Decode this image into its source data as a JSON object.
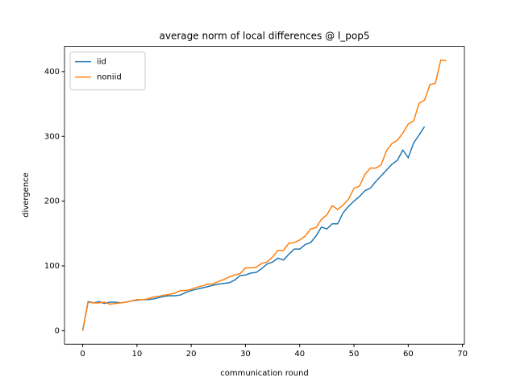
{
  "chart_data": {
    "type": "line",
    "title": "average norm of local differences @ l_pop5",
    "xlabel": "communication round",
    "ylabel": "divergence",
    "series": [
      {
        "name": "iid",
        "color": "#1f77b4",
        "x": [
          0,
          1,
          2,
          3,
          4,
          5,
          6,
          7,
          8,
          9,
          10,
          11,
          12,
          13,
          14,
          15,
          16,
          17,
          18,
          19,
          20,
          21,
          22,
          23,
          24,
          25,
          26,
          27,
          28,
          29,
          30,
          31,
          32,
          33,
          34,
          35,
          36,
          37,
          38,
          39,
          40,
          41,
          42,
          43,
          44,
          45,
          46,
          47,
          48,
          49,
          50,
          51,
          52,
          53,
          54,
          55,
          56,
          57,
          58,
          59,
          60,
          61,
          62,
          63
        ],
        "values": [
          0,
          45,
          43,
          45,
          42,
          44,
          44,
          43,
          44,
          46,
          47,
          48,
          48,
          49,
          51,
          53,
          54,
          54,
          55,
          59,
          62,
          64,
          66,
          68,
          70,
          72,
          73,
          74,
          78,
          85,
          86,
          89,
          90,
          96,
          103,
          106,
          112,
          109,
          118,
          126,
          126,
          133,
          136,
          146,
          160,
          157,
          165,
          165,
          182,
          192,
          200,
          207,
          216,
          220,
          230,
          239,
          248,
          257,
          263,
          279,
          267,
          290,
          302,
          315
        ]
      },
      {
        "name": "noniid",
        "color": "#ff7f0e",
        "x": [
          0,
          1,
          2,
          3,
          4,
          5,
          6,
          7,
          8,
          9,
          10,
          11,
          12,
          13,
          14,
          15,
          16,
          17,
          18,
          19,
          20,
          21,
          22,
          23,
          24,
          25,
          26,
          27,
          28,
          29,
          30,
          31,
          32,
          33,
          34,
          35,
          36,
          37,
          38,
          39,
          40,
          41,
          42,
          43,
          44,
          45,
          46,
          47,
          48,
          49,
          50,
          51,
          52,
          53,
          54,
          55,
          56,
          57,
          58,
          59,
          60,
          61,
          62,
          63,
          64,
          65,
          66,
          67
        ],
        "values": [
          0,
          44,
          43,
          43,
          44,
          41,
          42,
          43,
          44,
          46,
          48,
          48,
          49,
          52,
          53,
          55,
          56,
          58,
          62,
          62,
          64,
          67,
          69,
          72,
          72,
          76,
          79,
          83,
          86,
          88,
          97,
          97,
          98,
          104,
          106,
          114,
          124,
          124,
          135,
          136,
          140,
          146,
          157,
          159,
          172,
          179,
          193,
          187,
          194,
          203,
          220,
          223,
          241,
          251,
          251,
          256,
          278,
          289,
          294,
          305,
          319,
          324,
          351,
          356,
          380,
          382,
          418,
          417
        ]
      }
    ],
    "xlim": [
      -3.35,
      70.35
    ],
    "xticks": [
      0,
      10,
      20,
      30,
      40,
      50,
      60,
      70
    ],
    "ylim": [
      -20.9,
      438.9
    ],
    "yticks": [
      0,
      100,
      200,
      300,
      400
    ],
    "legend": "upper left"
  }
}
